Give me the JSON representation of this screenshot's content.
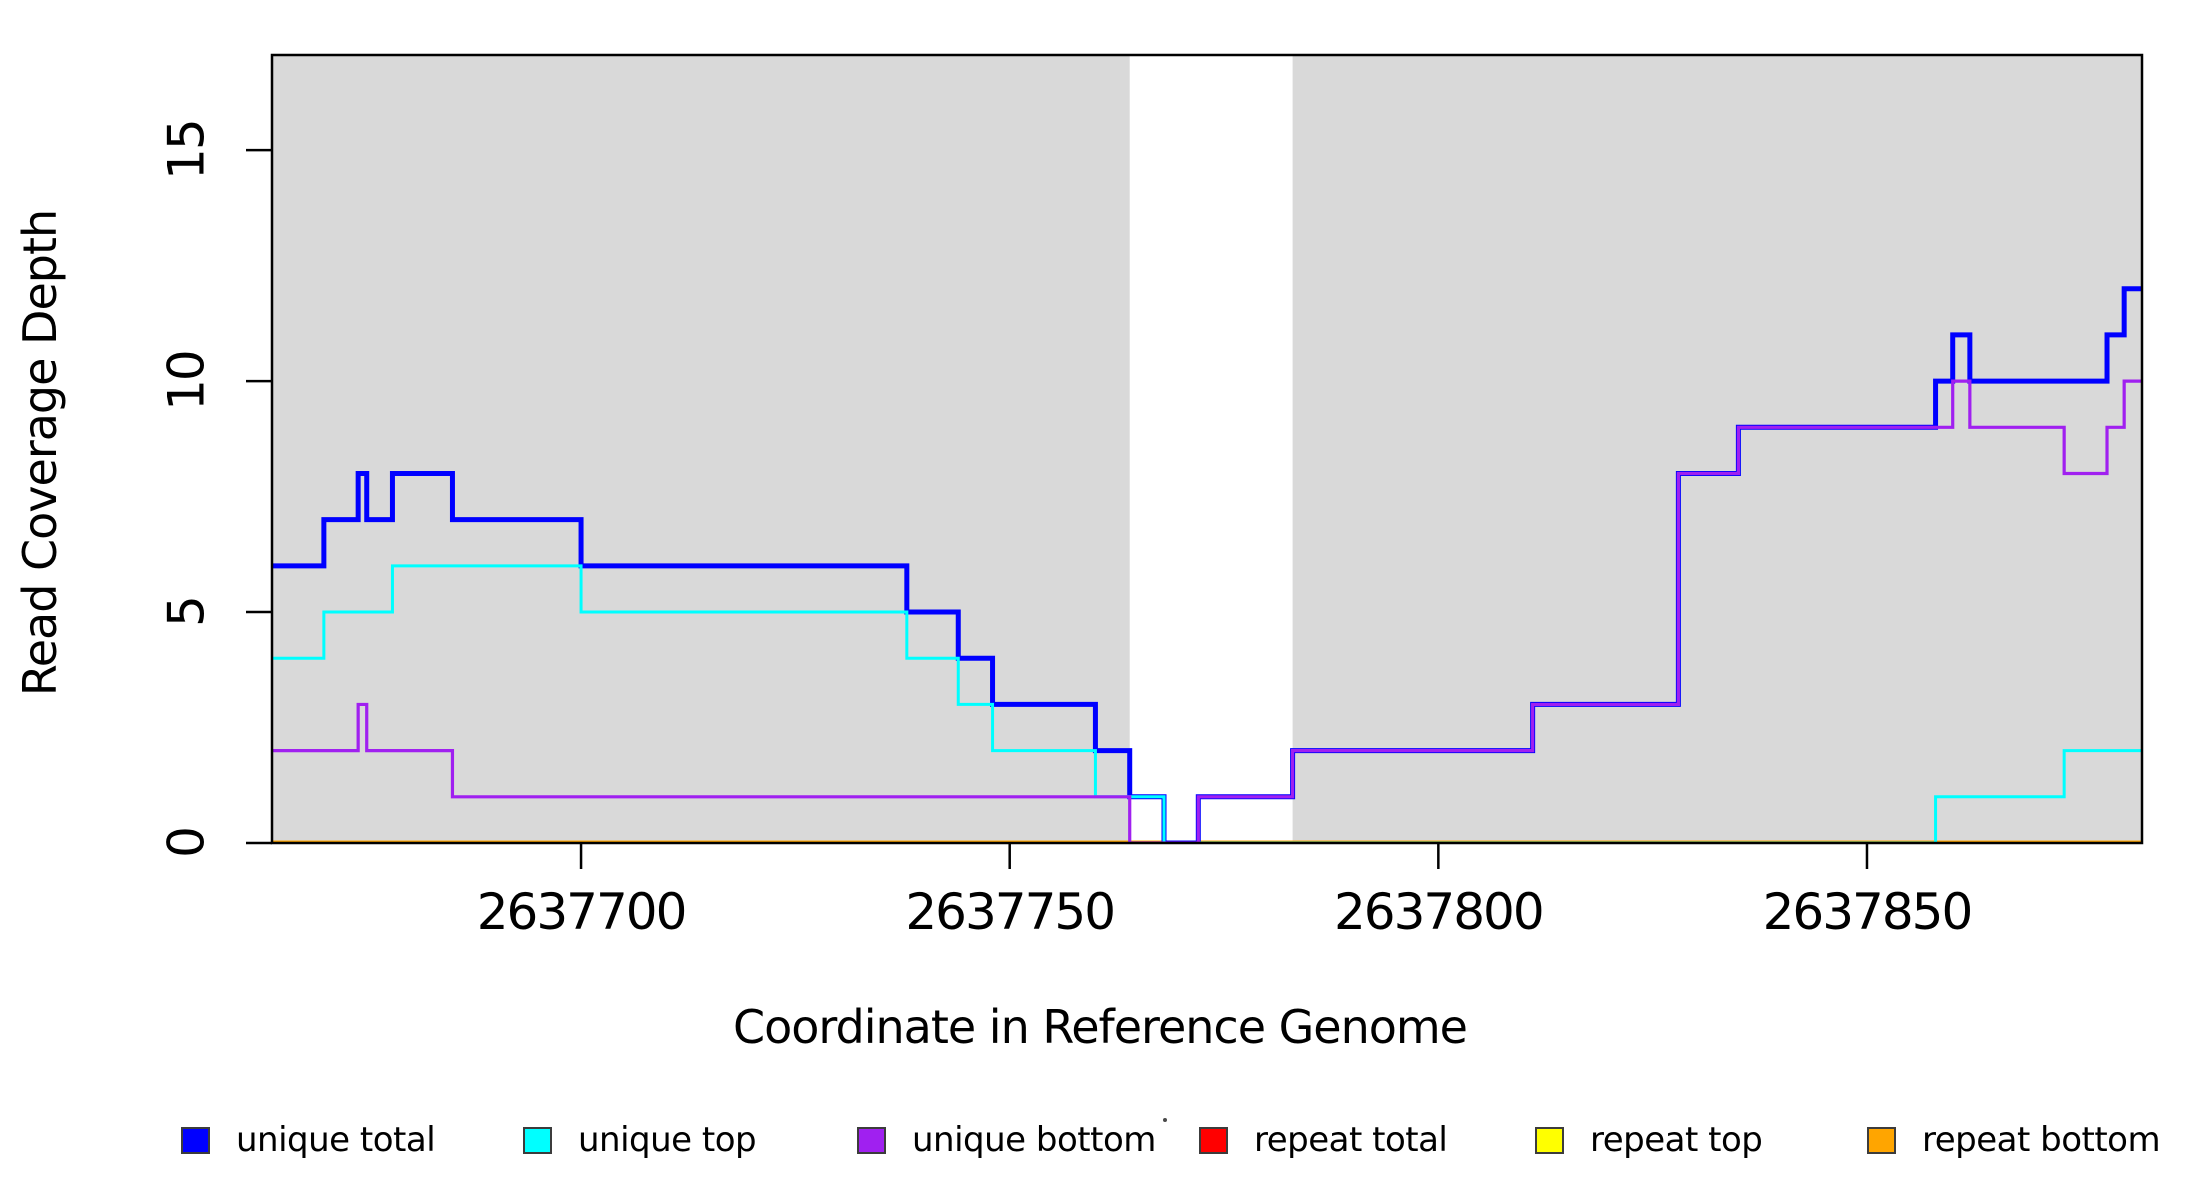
{
  "chart_data": {
    "type": "line",
    "subtype": "step-post",
    "title": "",
    "xlabel": "Coordinate in Reference Genome",
    "ylabel": "Read Coverage Depth",
    "xlim": [
      2637663.95,
      2637882.08
    ],
    "ylim": [
      0,
      17.06
    ],
    "x_ticks": [
      "2637700",
      "2637750",
      "2637800",
      "2637850"
    ],
    "x_tick_values": [
      2637700,
      2637750,
      2637800,
      2637850
    ],
    "y_ticks": [
      "0",
      "5",
      "10",
      "15"
    ],
    "y_tick_values": [
      0,
      5,
      10,
      15
    ],
    "grid": false,
    "legend_position": "bottom",
    "plot_background": "#ffffff",
    "shaded_regions": [
      {
        "name": "left-gray-band",
        "from": 2637663.95,
        "to": 2637764,
        "color": "#d9d9d9"
      },
      {
        "name": "right-gray-band",
        "from": 2637783,
        "to": 2637882.08,
        "color": "#d9d9d9"
      }
    ],
    "unshaded_gap": {
      "from": 2637764,
      "to": 2637783
    },
    "series": [
      {
        "name": "repeat total",
        "color": "#ff0000",
        "linewidth": 4,
        "steps": [
          [
            2637663.95,
            0
          ]
        ]
      },
      {
        "name": "repeat top",
        "color": "#ffff00",
        "linewidth": 4,
        "steps": [
          [
            2637663.95,
            0
          ]
        ]
      },
      {
        "name": "repeat bottom",
        "color": "#ffa500",
        "linewidth": 5,
        "steps": [
          [
            2637663.95,
            0
          ]
        ]
      },
      {
        "name": "unique total",
        "color": "#0000ff",
        "linewidth": 5,
        "steps": [
          [
            2637663.95,
            6
          ],
          [
            2637670,
            7
          ],
          [
            2637674,
            8
          ],
          [
            2637675,
            7
          ],
          [
            2637678,
            8
          ],
          [
            2637685,
            7
          ],
          [
            2637700,
            6
          ],
          [
            2637738,
            5
          ],
          [
            2637744,
            4
          ],
          [
            2637748,
            3
          ],
          [
            2637760,
            2
          ],
          [
            2637764,
            1
          ],
          [
            2637768,
            0
          ],
          [
            2637772,
            1
          ],
          [
            2637783,
            2
          ],
          [
            2637811,
            3
          ],
          [
            2637828,
            8
          ],
          [
            2637835,
            9
          ],
          [
            2637858,
            10
          ],
          [
            2637860,
            11
          ],
          [
            2637862,
            10
          ],
          [
            2637878,
            11
          ],
          [
            2637880,
            12
          ]
        ]
      },
      {
        "name": "unique top",
        "color": "#00ffff",
        "linewidth": 3,
        "steps": [
          [
            2637663.95,
            4
          ],
          [
            2637670,
            5
          ],
          [
            2637678,
            6
          ],
          [
            2637700,
            5
          ],
          [
            2637738,
            4
          ],
          [
            2637744,
            3
          ],
          [
            2637748,
            2
          ],
          [
            2637760,
            1
          ],
          [
            2637768,
            0
          ],
          [
            2637858,
            1
          ],
          [
            2637873,
            2
          ]
        ]
      },
      {
        "name": "unique bottom",
        "color": "#a020f0",
        "linewidth": 3.2,
        "steps": [
          [
            2637663.95,
            2
          ],
          [
            2637674,
            3
          ],
          [
            2637675,
            2
          ],
          [
            2637685,
            1
          ],
          [
            2637764,
            0
          ],
          [
            2637772,
            1
          ],
          [
            2637783,
            2
          ],
          [
            2637811,
            3
          ],
          [
            2637828,
            8
          ],
          [
            2637835,
            9
          ],
          [
            2637860,
            10
          ],
          [
            2637862,
            9
          ],
          [
            2637873,
            8
          ],
          [
            2637878,
            9
          ],
          [
            2637880,
            10
          ]
        ]
      }
    ]
  },
  "legend": {
    "items": [
      {
        "label": "unique total",
        "color": "#0000ff"
      },
      {
        "label": "unique top",
        "color": "#00ffff"
      },
      {
        "label": "unique bottom",
        "color": "#a020f0"
      },
      {
        "label": "repeat total",
        "color": "#ff0000"
      },
      {
        "label": "repeat top",
        "color": "#ffff00"
      },
      {
        "label": "repeat bottom",
        "color": "#ffa500"
      }
    ]
  },
  "colors": {
    "band_gray": "#d9d9d9",
    "axis_black": "#000000"
  }
}
